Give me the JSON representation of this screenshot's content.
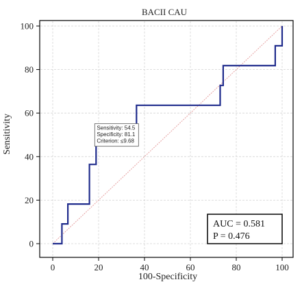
{
  "chart_data": {
    "type": "line",
    "title": "BACII  CAU",
    "xlabel": "100-Specificity",
    "ylabel": "Sensitivity",
    "xlim": [
      0,
      100
    ],
    "ylim": [
      0,
      100
    ],
    "xticks": [
      0,
      20,
      40,
      60,
      80,
      100
    ],
    "yticks": [
      0,
      20,
      40,
      60,
      80,
      100
    ],
    "grid": true,
    "series": [
      {
        "style": "step",
        "color": "#1f2b8c",
        "points": [
          [
            0,
            0
          ],
          [
            4,
            0
          ],
          [
            4,
            9.1
          ],
          [
            6.6,
            9.1
          ],
          [
            6.6,
            18.2
          ],
          [
            16,
            18.2
          ],
          [
            16,
            36.4
          ],
          [
            18.9,
            36.4
          ],
          [
            18.9,
            54.5
          ],
          [
            36.5,
            54.5
          ],
          [
            36.5,
            63.6
          ],
          [
            73,
            63.6
          ],
          [
            73,
            72.7
          ],
          [
            74.3,
            72.7
          ],
          [
            74.3,
            81.8
          ],
          [
            97,
            81.8
          ],
          [
            97,
            90.9
          ],
          [
            100,
            90.9
          ],
          [
            100,
            100
          ]
        ]
      },
      {
        "style": "diagonal-reference",
        "color": "#e6a0a0",
        "points": [
          [
            0,
            0
          ],
          [
            100,
            100
          ]
        ]
      }
    ],
    "annotation": {
      "point": [
        18.9,
        54.5
      ],
      "lines": [
        "Sensitivity: 54.5",
        "Specificity: 81.1",
        "Criterion: ≤9.68"
      ]
    },
    "stats": {
      "auc": "AUC = 0.581",
      "p": "P  = 0.476"
    }
  }
}
